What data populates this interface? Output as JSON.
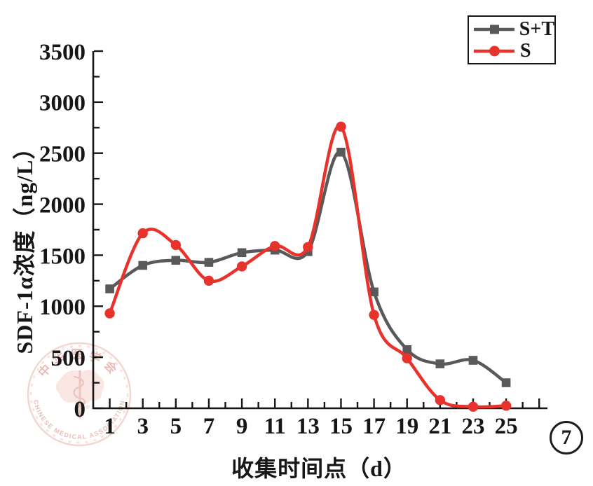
{
  "figure": {
    "number_label": "7"
  },
  "legend": {
    "items": [
      {
        "label": "S+T",
        "marker": "square"
      },
      {
        "label": "S",
        "marker": "circle"
      }
    ]
  },
  "watermark": {
    "text_cn": "中华医学会",
    "text_en": "CHINESE MEDICAL ASSOCIATION"
  },
  "chart_data": {
    "type": "line",
    "curve": "spline",
    "title": "",
    "xlabel": "收集时间点（d）",
    "ylabel": "SDF-1α浓度（ng/L）",
    "x": [
      1,
      3,
      5,
      7,
      9,
      11,
      13,
      15,
      17,
      19,
      21,
      23,
      25
    ],
    "series": [
      {
        "name": "S+T",
        "color": "#595959",
        "marker": "square",
        "values": [
          1170,
          1400,
          1450,
          1430,
          1525,
          1550,
          1535,
          2510,
          1140,
          575,
          435,
          470,
          250
        ]
      },
      {
        "name": "S",
        "color": "#e8332c",
        "marker": "circle",
        "values": [
          930,
          1715,
          1600,
          1250,
          1390,
          1590,
          1580,
          2760,
          915,
          490,
          80,
          15,
          25
        ]
      }
    ],
    "xlim": [
      0,
      27.5
    ],
    "ylim": [
      0,
      3500
    ],
    "x_ticks": [
      1,
      3,
      5,
      7,
      9,
      11,
      13,
      15,
      17,
      19,
      21,
      23,
      25
    ],
    "y_ticks": [
      0,
      500,
      1000,
      1500,
      2000,
      2500,
      3000,
      3500
    ],
    "y_minor_step": 250,
    "x_minor_step": 1,
    "grid": false,
    "legend_position": "top-right",
    "axis_color": "#161616"
  }
}
